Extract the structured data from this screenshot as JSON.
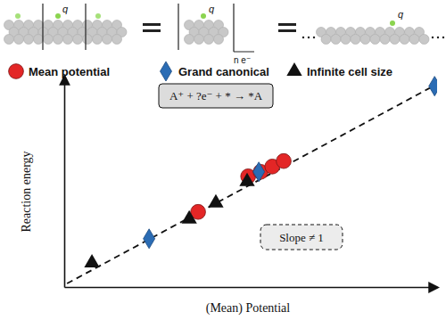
{
  "chart_data": {
    "type": "scatter",
    "x_label": "(Mean) Potential",
    "y_label": "Reaction energy",
    "xlim": [
      0,
      10.5
    ],
    "ylim": [
      0,
      10.8
    ],
    "xticks": [],
    "yticks": [],
    "tick_labels": false,
    "grid": false,
    "legend": "top",
    "annotations": [
      "A⁺ + ?e⁻ + * → *A",
      "Slope ≠ 1"
    ],
    "schematic_labels": [
      "q",
      "q",
      "n e⁻",
      "q"
    ],
    "series": [
      {
        "name": "Mean potential",
        "color": "#e32626",
        "marker": "circle",
        "x": [
          3.77,
          5.18,
          5.53,
          5.86,
          6.18
        ],
        "values": [
          3.84,
          5.66,
          5.89,
          6.16,
          6.44
        ]
      },
      {
        "name": "Grand canonical",
        "color": "#2b6cb4",
        "marker": "diamond",
        "x": [
          2.39,
          5.48,
          10.43
        ],
        "values": [
          2.47,
          5.89,
          10.27
        ]
      },
      {
        "name": "Infinite cell size",
        "color": "#111111",
        "marker": "triangle",
        "x": [
          0.78,
          3.52,
          4.27,
          5.15
        ],
        "values": [
          1.23,
          3.47,
          4.29,
          5.39
        ]
      },
      {
        "type": "line",
        "line_style": "dashed",
        "color": "#111111",
        "x": [
          0.08,
          10.3
        ],
        "values": [
          0.18,
          10.18
        ]
      }
    ]
  }
}
